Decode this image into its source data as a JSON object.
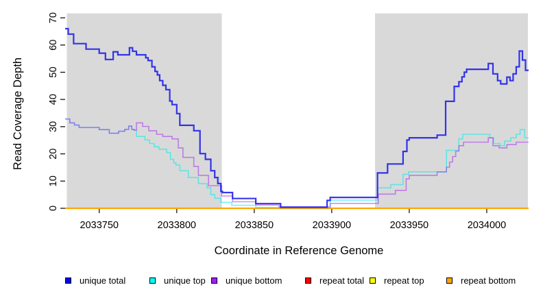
{
  "figure": {
    "background": "#ffffff",
    "shaded_region_color": "#d9d9d9",
    "axis_color": "#000000"
  },
  "chart_data": {
    "type": "line",
    "subtype": "step-coverage",
    "title": "",
    "xlabel": "Coordinate in Reference Genome",
    "ylabel": "Read Coverage Depth",
    "xlim": [
      2033728,
      2034027
    ],
    "ylim": [
      0,
      70
    ],
    "xticks": [
      2033750,
      2033800,
      2033850,
      2033900,
      2033950,
      2034000
    ],
    "yticks": [
      0,
      10,
      20,
      30,
      40,
      50,
      60,
      70
    ],
    "grid": "off",
    "legend_position": "bottom",
    "shaded_regions": [
      {
        "name": "left-shaded-region",
        "x0": 2033729,
        "x1": 2033829
      },
      {
        "name": "right-shaded-region",
        "x0": 2033928,
        "x1": 2034026.5
      }
    ],
    "draw_order": [
      3,
      4,
      5,
      1,
      2,
      0
    ],
    "series": [
      {
        "name": "unique total",
        "legend_color": "#0000ee",
        "line_color": "rgba(20,20,235,0.85)",
        "line_width": 2.2,
        "points": [
          [
            2033728,
            66
          ],
          [
            2033730,
            64
          ],
          [
            2033733.5,
            60.5
          ],
          [
            2033741.5,
            58.5
          ],
          [
            2033750,
            57
          ],
          [
            2033754,
            54.7
          ],
          [
            2033759,
            57.5
          ],
          [
            2033762,
            56.4
          ],
          [
            2033769.5,
            59
          ],
          [
            2033771.5,
            57.7
          ],
          [
            2033774,
            56.4
          ],
          [
            2033780,
            55.3
          ],
          [
            2033781.5,
            54.3
          ],
          [
            2033784,
            52
          ],
          [
            2033786,
            50.3
          ],
          [
            2033787.5,
            49
          ],
          [
            2033789,
            46.9
          ],
          [
            2033791,
            45.2
          ],
          [
            2033793,
            43.6
          ],
          [
            2033795.5,
            39.4
          ],
          [
            2033797,
            38.1
          ],
          [
            2033800,
            34.8
          ],
          [
            2033802,
            30.5
          ],
          [
            2033811,
            28.5
          ],
          [
            2033815,
            20.1
          ],
          [
            2033818.5,
            18
          ],
          [
            2033822,
            13.8
          ],
          [
            2033824.5,
            11.3
          ],
          [
            2033826.5,
            9.1
          ],
          [
            2033828.5,
            6.2
          ],
          [
            2033829.5,
            5.8
          ],
          [
            2033836,
            3.6
          ],
          [
            2033851,
            1.7
          ],
          [
            2033867,
            0.4
          ],
          [
            2033897,
            2.9
          ],
          [
            2033899,
            4
          ],
          [
            2033929.5,
            13
          ],
          [
            2033936,
            16.3
          ],
          [
            2033946,
            20.9
          ],
          [
            2033948.5,
            25.1
          ],
          [
            2033950,
            25.9
          ],
          [
            2033968,
            26.9
          ],
          [
            2033973.5,
            39.3
          ],
          [
            2033979,
            44.8
          ],
          [
            2033982,
            46.5
          ],
          [
            2033984,
            48.3
          ],
          [
            2033985.5,
            50
          ],
          [
            2033987,
            51.1
          ],
          [
            2034001,
            53.2
          ],
          [
            2034004,
            49.4
          ],
          [
            2034007,
            46.9
          ],
          [
            2034009,
            45.7
          ],
          [
            2034013,
            48.2
          ],
          [
            2034015,
            46.9
          ],
          [
            2034017,
            49.4
          ],
          [
            2034019,
            52
          ],
          [
            2034021,
            57.8
          ],
          [
            2034023,
            54.5
          ],
          [
            2034025,
            50.7
          ]
        ]
      },
      {
        "name": "unique top",
        "legend_color": "#00ffff",
        "line_color": "rgba(0,235,235,0.55)",
        "line_width": 1.6,
        "points": [
          [
            2033728,
            32.8
          ],
          [
            2033731,
            31.4
          ],
          [
            2033734,
            30.6
          ],
          [
            2033737,
            29.7
          ],
          [
            2033750,
            28.9
          ],
          [
            2033756.5,
            27.6
          ],
          [
            2033762.5,
            28.3
          ],
          [
            2033766.5,
            29
          ],
          [
            2033769,
            30.2
          ],
          [
            2033771,
            29
          ],
          [
            2033772.5,
            28.7
          ],
          [
            2033774,
            26.4
          ],
          [
            2033779.5,
            25.1
          ],
          [
            2033782.5,
            23.8
          ],
          [
            2033785.5,
            22.6
          ],
          [
            2033788.5,
            21.7
          ],
          [
            2033793.5,
            20.5
          ],
          [
            2033796,
            18
          ],
          [
            2033798,
            16.7
          ],
          [
            2033799.5,
            15.9
          ],
          [
            2033802,
            13.8
          ],
          [
            2033807.5,
            11.3
          ],
          [
            2033814,
            9.1
          ],
          [
            2033819.5,
            7.5
          ],
          [
            2033822,
            5
          ],
          [
            2033824.5,
            3.7
          ],
          [
            2033828.5,
            2.2
          ],
          [
            2033835.5,
            1.1
          ],
          [
            2033851,
            0.3
          ],
          [
            2033899,
            3
          ],
          [
            2033929.5,
            7.5
          ],
          [
            2033938,
            8.7
          ],
          [
            2033946,
            12.5
          ],
          [
            2033949.5,
            13.4
          ],
          [
            2033974,
            21.3
          ],
          [
            2033982,
            25.5
          ],
          [
            2033984.5,
            27.2
          ],
          [
            2034002,
            25.9
          ],
          [
            2034004.5,
            23.8
          ],
          [
            2034008.5,
            23
          ],
          [
            2034011.5,
            24.7
          ],
          [
            2034015.5,
            25.9
          ],
          [
            2034019,
            27.2
          ],
          [
            2034021.5,
            28.9
          ],
          [
            2034024.5,
            25.9
          ]
        ]
      },
      {
        "name": "unique bottom",
        "legend_color": "#a020f0",
        "line_color": "rgba(160,32,240,0.5)",
        "line_width": 1.6,
        "points": [
          [
            2033728,
            32.8
          ],
          [
            2033731,
            31.4
          ],
          [
            2033734,
            30.6
          ],
          [
            2033737,
            29.7
          ],
          [
            2033750,
            28.9
          ],
          [
            2033756.5,
            27.6
          ],
          [
            2033762.5,
            28.3
          ],
          [
            2033766.5,
            29
          ],
          [
            2033769,
            30.2
          ],
          [
            2033771,
            29
          ],
          [
            2033772.5,
            28.7
          ],
          [
            2033774,
            31.4
          ],
          [
            2033778,
            30.1
          ],
          [
            2033782,
            28.5
          ],
          [
            2033787,
            27.2
          ],
          [
            2033791,
            26.4
          ],
          [
            2033797,
            25.5
          ],
          [
            2033801,
            22.2
          ],
          [
            2033804,
            18.7
          ],
          [
            2033811,
            15.4
          ],
          [
            2033814,
            12.1
          ],
          [
            2033820.5,
            8.3
          ],
          [
            2033829,
            4.5
          ],
          [
            2033836,
            2.4
          ],
          [
            2033851,
            1.2
          ],
          [
            2033866,
            0.5
          ],
          [
            2033899,
            1.8
          ],
          [
            2033930,
            5.2
          ],
          [
            2033941,
            6.6
          ],
          [
            2033948,
            10.8
          ],
          [
            2033950,
            12.1
          ],
          [
            2033968,
            13.4
          ],
          [
            2033974,
            15.1
          ],
          [
            2033976,
            17
          ],
          [
            2033978,
            19
          ],
          [
            2033980,
            21
          ],
          [
            2033982,
            23
          ],
          [
            2033985,
            24.3
          ],
          [
            2034001,
            25.9
          ],
          [
            2034004,
            23
          ],
          [
            2034008,
            22.2
          ],
          [
            2034013,
            23.4
          ],
          [
            2034019,
            24.3
          ]
        ]
      },
      {
        "name": "repeat total",
        "legend_color": "#ff0000",
        "line_color": "#cc0000",
        "line_width": 1.5,
        "points": [
          [
            2033728,
            0
          ]
        ]
      },
      {
        "name": "repeat top",
        "legend_color": "#ffff00",
        "line_color": "#ffff00",
        "line_width": 1.5,
        "points": [
          [
            2033728,
            0
          ]
        ]
      },
      {
        "name": "repeat bottom",
        "legend_color": "#ffa500",
        "line_color": "#ffa500",
        "line_width": 2.2,
        "points": [
          [
            2033728,
            0
          ]
        ]
      }
    ]
  }
}
